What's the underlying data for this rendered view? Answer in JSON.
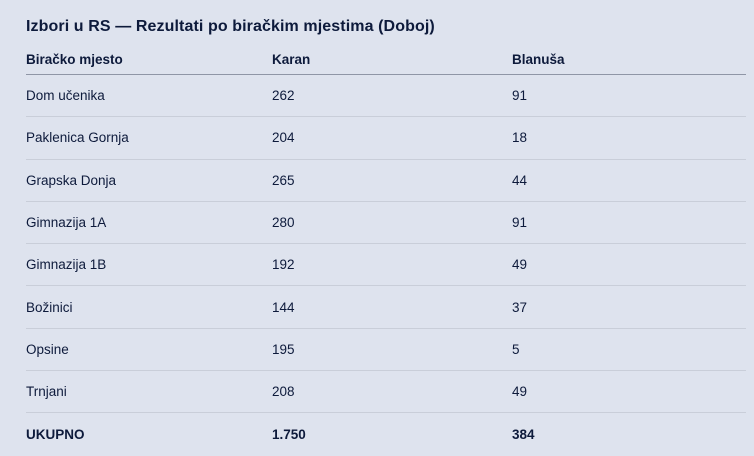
{
  "title": "Izbori u RS — Rezultati po biračkim mjestima (Doboj)",
  "chart_data": {
    "type": "table",
    "title": "Izbori u RS — Rezultati po biračkim mjestima (Doboj)",
    "columns": [
      "Biračko mjesto",
      "Karan",
      "Blanuša"
    ],
    "rows": [
      [
        "Dom učenika",
        "262",
        "91"
      ],
      [
        "Paklenica Gornja",
        "204",
        "18"
      ],
      [
        "Grapska Donja",
        "265",
        "44"
      ],
      [
        "Gimnazija 1A",
        "280",
        "91"
      ],
      [
        "Gimnazija 1B",
        "192",
        "49"
      ],
      [
        "Božinici",
        "144",
        "37"
      ],
      [
        "Opsine",
        "195",
        "5"
      ],
      [
        "Trnjani",
        "208",
        "49"
      ]
    ],
    "rows_numeric": {
      "karan": [
        262,
        204,
        265,
        280,
        192,
        144,
        195,
        208
      ],
      "blanusa": [
        91,
        18,
        44,
        91,
        49,
        37,
        5,
        49
      ]
    },
    "total_row": [
      "UKUPNO",
      "1.750",
      "384"
    ]
  },
  "colors": {
    "background": "#dee3ee",
    "text": "#0d1a3b",
    "header_divider": "#8f96a6",
    "row_divider": "#c9ced9"
  }
}
